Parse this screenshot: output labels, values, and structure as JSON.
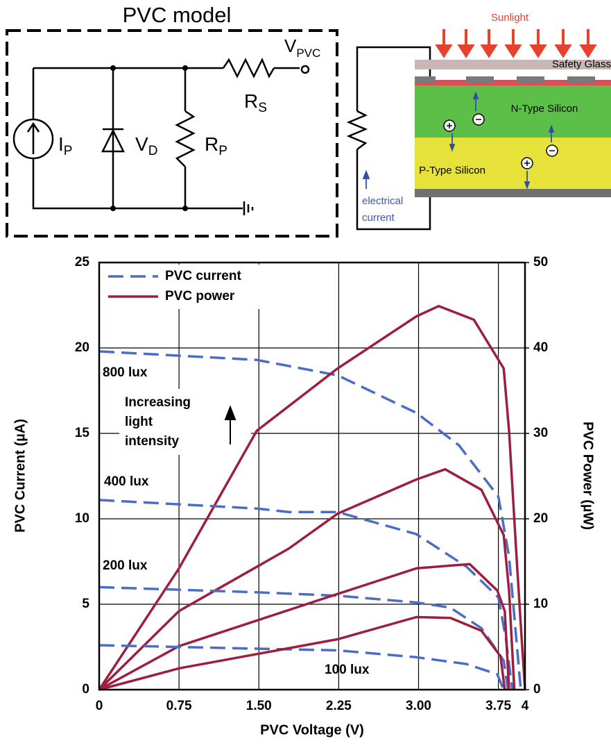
{
  "circuit": {
    "title": "PVC model",
    "labels": [
      {
        "text": "I",
        "sub": "P"
      },
      {
        "text": "V",
        "sub": "D"
      },
      {
        "text": "R",
        "sub": "P"
      },
      {
        "text": "R",
        "sub": "S"
      },
      {
        "text": "V",
        "sub": "PVC"
      }
    ]
  },
  "cell": {
    "sunlight": "Sunlight",
    "glass": "Safety Glass",
    "n_type": "N-Type Silicon",
    "p_type": "P-Type Silicon",
    "current": [
      "electrical",
      "current"
    ]
  },
  "chart_data": {
    "type": "line",
    "xlabel": "PVC Voltage  (V)",
    "ylabel": "PVC Current (µA)",
    "y2label": "PVC Power (µW)",
    "xlim": [
      0,
      4
    ],
    "xticks": [
      0,
      0.75,
      {
        "value": 1.5,
        "label": "1.50"
      },
      2.25,
      {
        "value": 3,
        "label": "3.00"
      },
      3.75,
      4
    ],
    "ylim": [
      0,
      25
    ],
    "yticks": [
      0,
      5,
      10,
      15,
      20,
      25
    ],
    "y2lim": [
      0,
      50
    ],
    "y2ticks": [
      0,
      10,
      20,
      30,
      40,
      50
    ],
    "grid": true,
    "legend_position": "upper left",
    "legend": {
      "current": {
        "name": "PVC current",
        "color": "#4b6cc7",
        "dashed": true
      },
      "power": {
        "name": "PVC power",
        "color": "#9c1f3f",
        "dashed": false,
        "axis": "y2"
      }
    },
    "annotation": [
      "Increasing",
      "light",
      "intensity"
    ],
    "series": [
      {
        "name": "800 lux",
        "current": {
          "x": [
            0,
            1.48,
            2.24,
            2.98,
            3.38,
            3.75,
            3.85,
            3.96
          ],
          "values": [
            19.8,
            19.3,
            18.4,
            16.2,
            14.3,
            11.3,
            7.8,
            0
          ]
        },
        "power": {
          "x": [
            0,
            0.75,
            1.48,
            2.24,
            2.98,
            3.19,
            3.52,
            3.8,
            3.85,
            3.92,
            3.96,
            4.0
          ],
          "values": [
            0,
            14.2,
            30.3,
            37.6,
            43.7,
            44.9,
            43.3,
            37.6,
            30.3,
            15.7,
            7.6,
            0
          ]
        }
      },
      {
        "name": "400 lux",
        "current": {
          "x": [
            0,
            1.48,
            1.78,
            2.24,
            2.98,
            3.45,
            3.75,
            3.82,
            3.88
          ],
          "values": [
            11.1,
            10.6,
            10.4,
            10.4,
            9.1,
            7.2,
            5.4,
            3.0,
            0
          ]
        },
        "power": {
          "x": [
            0,
            0.75,
            1.78,
            2.24,
            2.98,
            3.25,
            3.59,
            3.8,
            3.85,
            3.9
          ],
          "values": [
            0,
            9.2,
            16.5,
            20.6,
            24.6,
            25.8,
            23.4,
            18.1,
            11.6,
            0
          ]
        }
      },
      {
        "name": "200 lux",
        "current": {
          "x": [
            0,
            1.48,
            2.24,
            2.98,
            3.3,
            3.59,
            3.8,
            3.84
          ],
          "values": [
            6.0,
            5.7,
            5.5,
            5.1,
            4.8,
            3.6,
            1.7,
            0
          ]
        },
        "power": {
          "x": [
            0,
            0.75,
            2.24,
            2.98,
            3.48,
            3.74,
            3.81,
            3.85
          ],
          "values": [
            0,
            5.1,
            11.2,
            14.2,
            14.7,
            11.6,
            9.2,
            0
          ]
        }
      },
      {
        "name": "100 lux",
        "current": {
          "x": [
            0,
            1.48,
            2.24,
            2.98,
            3.45,
            3.74,
            3.8
          ],
          "values": [
            2.6,
            2.4,
            2.3,
            1.9,
            1.5,
            0.9,
            0
          ]
        },
        "power": {
          "x": [
            0,
            0.75,
            2.24,
            2.98,
            3.3,
            3.59,
            3.77,
            3.81
          ],
          "values": [
            0,
            2.5,
            5.9,
            8.5,
            8.4,
            6.9,
            3.9,
            0
          ]
        }
      }
    ]
  }
}
